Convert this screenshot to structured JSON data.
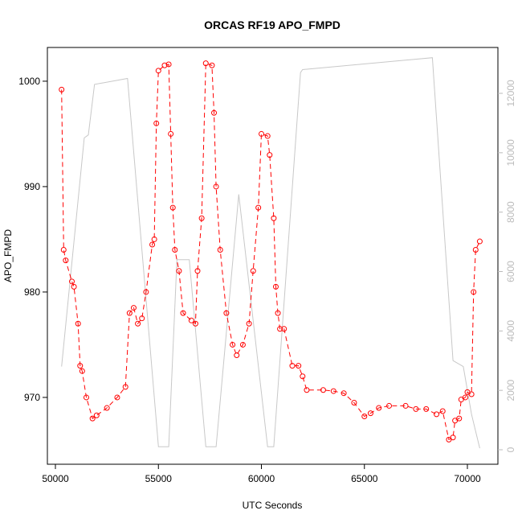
{
  "chart_data": {
    "type": "line",
    "title": "ORCAS RF19 APO_FMPD",
    "x_label": "UTC Seconds",
    "y_label": "APO_FMPD",
    "xlim": [
      49610,
      71481
    ],
    "xticks": [
      50000,
      55000,
      60000,
      65000,
      70000
    ],
    "ylim": [
      963.66,
      1003.2
    ],
    "yticks": [
      970,
      980,
      990,
      1000
    ],
    "y2lim": [
      -488,
      13544
    ],
    "y2ticks": [
      0,
      2000,
      4000,
      6000,
      8000,
      10000,
      12000
    ],
    "series": [
      {
        "color": "#ff0000",
        "marker": "circle",
        "x": [
          50300,
          50400,
          50500,
          50800,
          50900,
          51100,
          51200,
          51300,
          51500,
          51800,
          52000,
          52500,
          53000,
          53400,
          53600,
          53800,
          54000,
          54200,
          54400,
          54700,
          54800,
          54900,
          55000,
          55300,
          55500,
          55600,
          55700,
          55800,
          56000,
          56200,
          56600,
          56800,
          56900,
          57100,
          57300,
          57600,
          57700,
          57800,
          58000,
          58300,
          58600,
          58800,
          59100,
          59400,
          59600,
          59850,
          60000,
          60300,
          60400,
          60600,
          60700,
          60800,
          60900,
          61100,
          61500,
          61800,
          62000,
          62200,
          63000,
          63500,
          64000,
          64500,
          65000,
          65300,
          65700,
          66200,
          67000,
          67500,
          68000,
          68500,
          68800,
          69100,
          69300,
          69400,
          69600,
          69700,
          69900,
          70000,
          70200,
          70300,
          70400,
          70600
        ],
        "values": [
          999.2,
          984,
          983,
          981,
          980.5,
          977,
          973,
          972.5,
          970,
          968,
          968.3,
          969,
          970,
          971,
          978,
          978.5,
          977,
          977.5,
          980,
          984.5,
          985,
          996,
          1001,
          1001.5,
          1001.6,
          995,
          988,
          984,
          982,
          978,
          977.3,
          977,
          982,
          987,
          1001.7,
          1001.5,
          997,
          990,
          984,
          978,
          975,
          974,
          975,
          977,
          982,
          988,
          995,
          994.8,
          993,
          987,
          980.5,
          978,
          976.5,
          976.5,
          973,
          973,
          972,
          970.7,
          970.7,
          970.6,
          970.4,
          969.5,
          968.2,
          968.5,
          969,
          969.2,
          969.2,
          968.9,
          968.9,
          968.4,
          968.7,
          966,
          966.2,
          967.8,
          968,
          969.8,
          970,
          970.5,
          970.3,
          980,
          984,
          984.8
        ]
      },
      {
        "color": "#c8c8c8",
        "axis": "y2",
        "x": [
          50300,
          51400,
          51600,
          51900,
          53500,
          55000,
          55500,
          55900,
          56500,
          57300,
          57800,
          58900,
          60300,
          60600,
          61900,
          62000,
          68300,
          69300,
          69800,
          70200,
          70600
        ],
        "values": [
          2800,
          10500,
          10600,
          12300,
          12500,
          100,
          100,
          6400,
          6400,
          100,
          100,
          8600,
          100,
          100,
          12700,
          12800,
          13200,
          3000,
          2800,
          1200,
          50
        ]
      }
    ]
  }
}
